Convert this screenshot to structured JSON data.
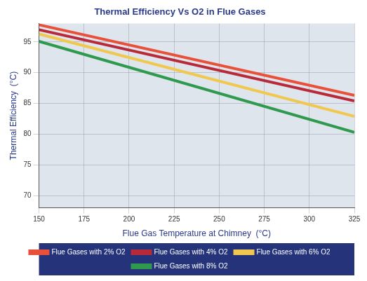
{
  "chart_data": {
    "type": "line",
    "title": "Thermal Efficiency Vs O2 in Flue Gases",
    "x_label": "Flue Gas Temperature at Chimney  (°C)",
    "y_label": "Thermal Efficiency  (°C)",
    "x": [
      150,
      325
    ],
    "series": [
      {
        "name": "Flue Gases with 2% O2",
        "color": "#e8503a",
        "values": [
          97.8,
          86.3
        ]
      },
      {
        "name": "Flue Gases with 4% O2",
        "color": "#b82a3a",
        "values": [
          97.0,
          85.4
        ]
      },
      {
        "name": "Flue Gases with 6% O2",
        "color": "#f0c850",
        "values": [
          96.3,
          82.9
        ]
      },
      {
        "name": "Flue Gases with 8% O2",
        "color": "#2f9a4e",
        "values": [
          95.1,
          80.3
        ]
      }
    ],
    "xlim": [
      150,
      325
    ],
    "xticks": [
      150,
      175,
      200,
      225,
      250,
      275,
      300,
      325
    ],
    "ylim": [
      68,
      98
    ],
    "yticks": [
      70,
      75,
      80,
      85,
      90,
      95
    ],
    "grid": true,
    "legend": "bottom"
  }
}
